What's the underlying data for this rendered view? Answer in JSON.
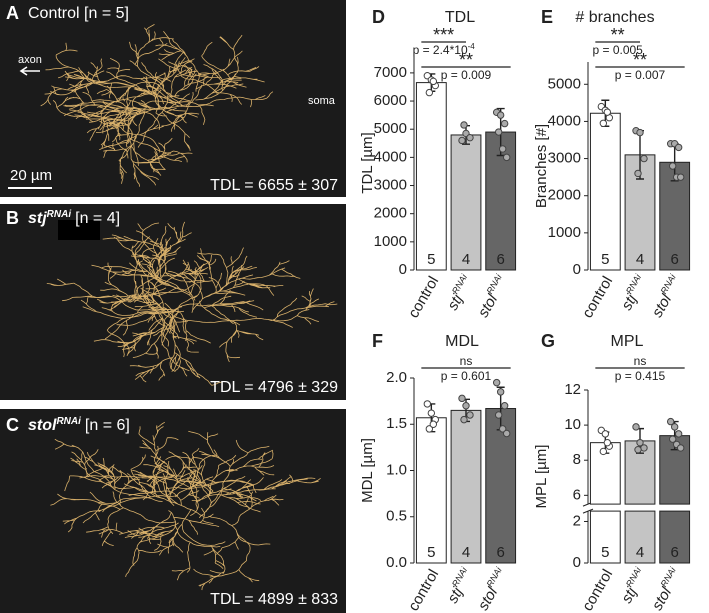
{
  "panels": [
    {
      "letter": "A",
      "title": "Control [n = 5]",
      "axon": "axon",
      "soma": "soma",
      "scale": "20 µm",
      "tdl": "TDL = 6655 ± 307"
    },
    {
      "letter": "B",
      "gene": "stj",
      "sup": "RNAi",
      "n": "[n = 4]",
      "tdl": "TDL = 4796 ± 329"
    },
    {
      "letter": "C",
      "gene": "stol",
      "sup": "RNAi",
      "n": "[n = 6]",
      "tdl": "TDL = 4899 ± 833"
    }
  ],
  "chart_data": [
    {
      "type": "bar",
      "panel_label": "D",
      "title": "TDL",
      "ylabel": "TDL [µm]",
      "categories": [
        {
          "text": "control"
        },
        {
          "text": "stj",
          "sup": "RNAi"
        },
        {
          "text": "stol",
          "sup": "RNAi"
        }
      ],
      "values": [
        6655,
        4796,
        4899
      ],
      "errors": [
        307,
        329,
        833
      ],
      "n": [
        5,
        4,
        6
      ],
      "points": [
        [
          6900,
          6750,
          6550,
          6300,
          6700
        ],
        [
          4600,
          4850,
          4700,
          5150
        ],
        [
          5600,
          5500,
          5200,
          4900,
          4300,
          4000
        ]
      ],
      "colors": [
        "#ffffff",
        "#c4c4c4",
        "#666666"
      ],
      "ylim": [
        0,
        7600
      ],
      "yticks": [
        0,
        1000,
        2000,
        3000,
        4000,
        5000,
        6000,
        7000
      ],
      "significance": [
        {
          "from": 0,
          "to": 1,
          "stars": "***",
          "p": {
            "text": "p = 2.4*10",
            "sup": "-4"
          }
        },
        {
          "from": 0,
          "to": 2,
          "stars": "**",
          "p": {
            "text": "p = 0.009"
          }
        }
      ]
    },
    {
      "type": "bar",
      "panel_label": "E",
      "title": "# branches",
      "ylabel": "Branches [#]",
      "categories": [
        {
          "text": "control"
        },
        {
          "text": "stj",
          "sup": "RNAi"
        },
        {
          "text": "stol",
          "sup": "RNAi"
        }
      ],
      "values": [
        4220,
        3100,
        2900
      ],
      "errors": [
        350,
        650,
        500
      ],
      "n": [
        5,
        4,
        6
      ],
      "points": [
        [
          4400,
          4300,
          4100,
          3950,
          4250
        ],
        [
          3750,
          3700,
          3000,
          2600
        ],
        [
          3400,
          3400,
          3300,
          2800,
          2500,
          2500
        ]
      ],
      "colors": [
        "#ffffff",
        "#c4c4c4",
        "#666666"
      ],
      "ylim": [
        0,
        5600
      ],
      "yticks": [
        0,
        1000,
        2000,
        3000,
        4000,
        5000
      ],
      "significance": [
        {
          "from": 0,
          "to": 1,
          "stars": "**",
          "p": {
            "text": "p = 0.005"
          }
        },
        {
          "from": 0,
          "to": 2,
          "stars": "**",
          "p": {
            "text": "p = 0.007"
          }
        }
      ]
    },
    {
      "type": "bar",
      "panel_label": "F",
      "title": "MDL",
      "ylabel": "MDL [µm]",
      "categories": [
        {
          "text": "control"
        },
        {
          "text": "stj",
          "sup": "RNAi"
        },
        {
          "text": "stol",
          "sup": "RNAi"
        }
      ],
      "values": [
        1.57,
        1.65,
        1.67
      ],
      "errors": [
        0.15,
        0.12,
        0.23
      ],
      "n": [
        5,
        4,
        6
      ],
      "points": [
        [
          1.72,
          1.62,
          1.55,
          1.45,
          1.5
        ],
        [
          1.78,
          1.7,
          1.6,
          1.55
        ],
        [
          1.95,
          1.85,
          1.7,
          1.6,
          1.45,
          1.4
        ]
      ],
      "colors": [
        "#ffffff",
        "#c4c4c4",
        "#666666"
      ],
      "ylim": [
        0,
        2
      ],
      "yticks": [
        {
          "value": 0,
          "label": "0.0"
        },
        0.5,
        {
          "value": 1,
          "label": "1.0"
        },
        1.5,
        {
          "value": 2,
          "label": "2.0"
        }
      ],
      "significance": [
        {
          "from": 0,
          "to": 2,
          "stars": "ns",
          "p": {
            "text": "p = 0.601"
          }
        }
      ]
    },
    {
      "type": "bar",
      "panel_label": "G",
      "title": "MPL",
      "ylabel": "MPL [µm]",
      "categories": [
        {
          "text": "control"
        },
        {
          "text": "stj",
          "sup": "RNAi"
        },
        {
          "text": "stol",
          "sup": "RNAi"
        }
      ],
      "values": [
        9.0,
        9.1,
        9.4
      ],
      "errors": [
        0.6,
        0.7,
        0.8
      ],
      "n": [
        5,
        4,
        6
      ],
      "points": [
        [
          9.7,
          9.5,
          8.8,
          8.5,
          9.0
        ],
        [
          9.9,
          9.0,
          8.7,
          8.6
        ],
        [
          10.2,
          9.9,
          9.5,
          9.2,
          8.9,
          8.7
        ]
      ],
      "colors": [
        "#ffffff",
        "#c4c4c4",
        "#666666"
      ],
      "ylim": [
        0,
        12
      ],
      "y_break": [
        2.5,
        5.5
      ],
      "yticks": [
        0,
        2,
        6,
        8,
        10,
        12
      ],
      "significance": [
        {
          "from": 0,
          "to": 2,
          "stars": "ns",
          "p": {
            "text": "p = 0.415"
          }
        }
      ]
    }
  ]
}
